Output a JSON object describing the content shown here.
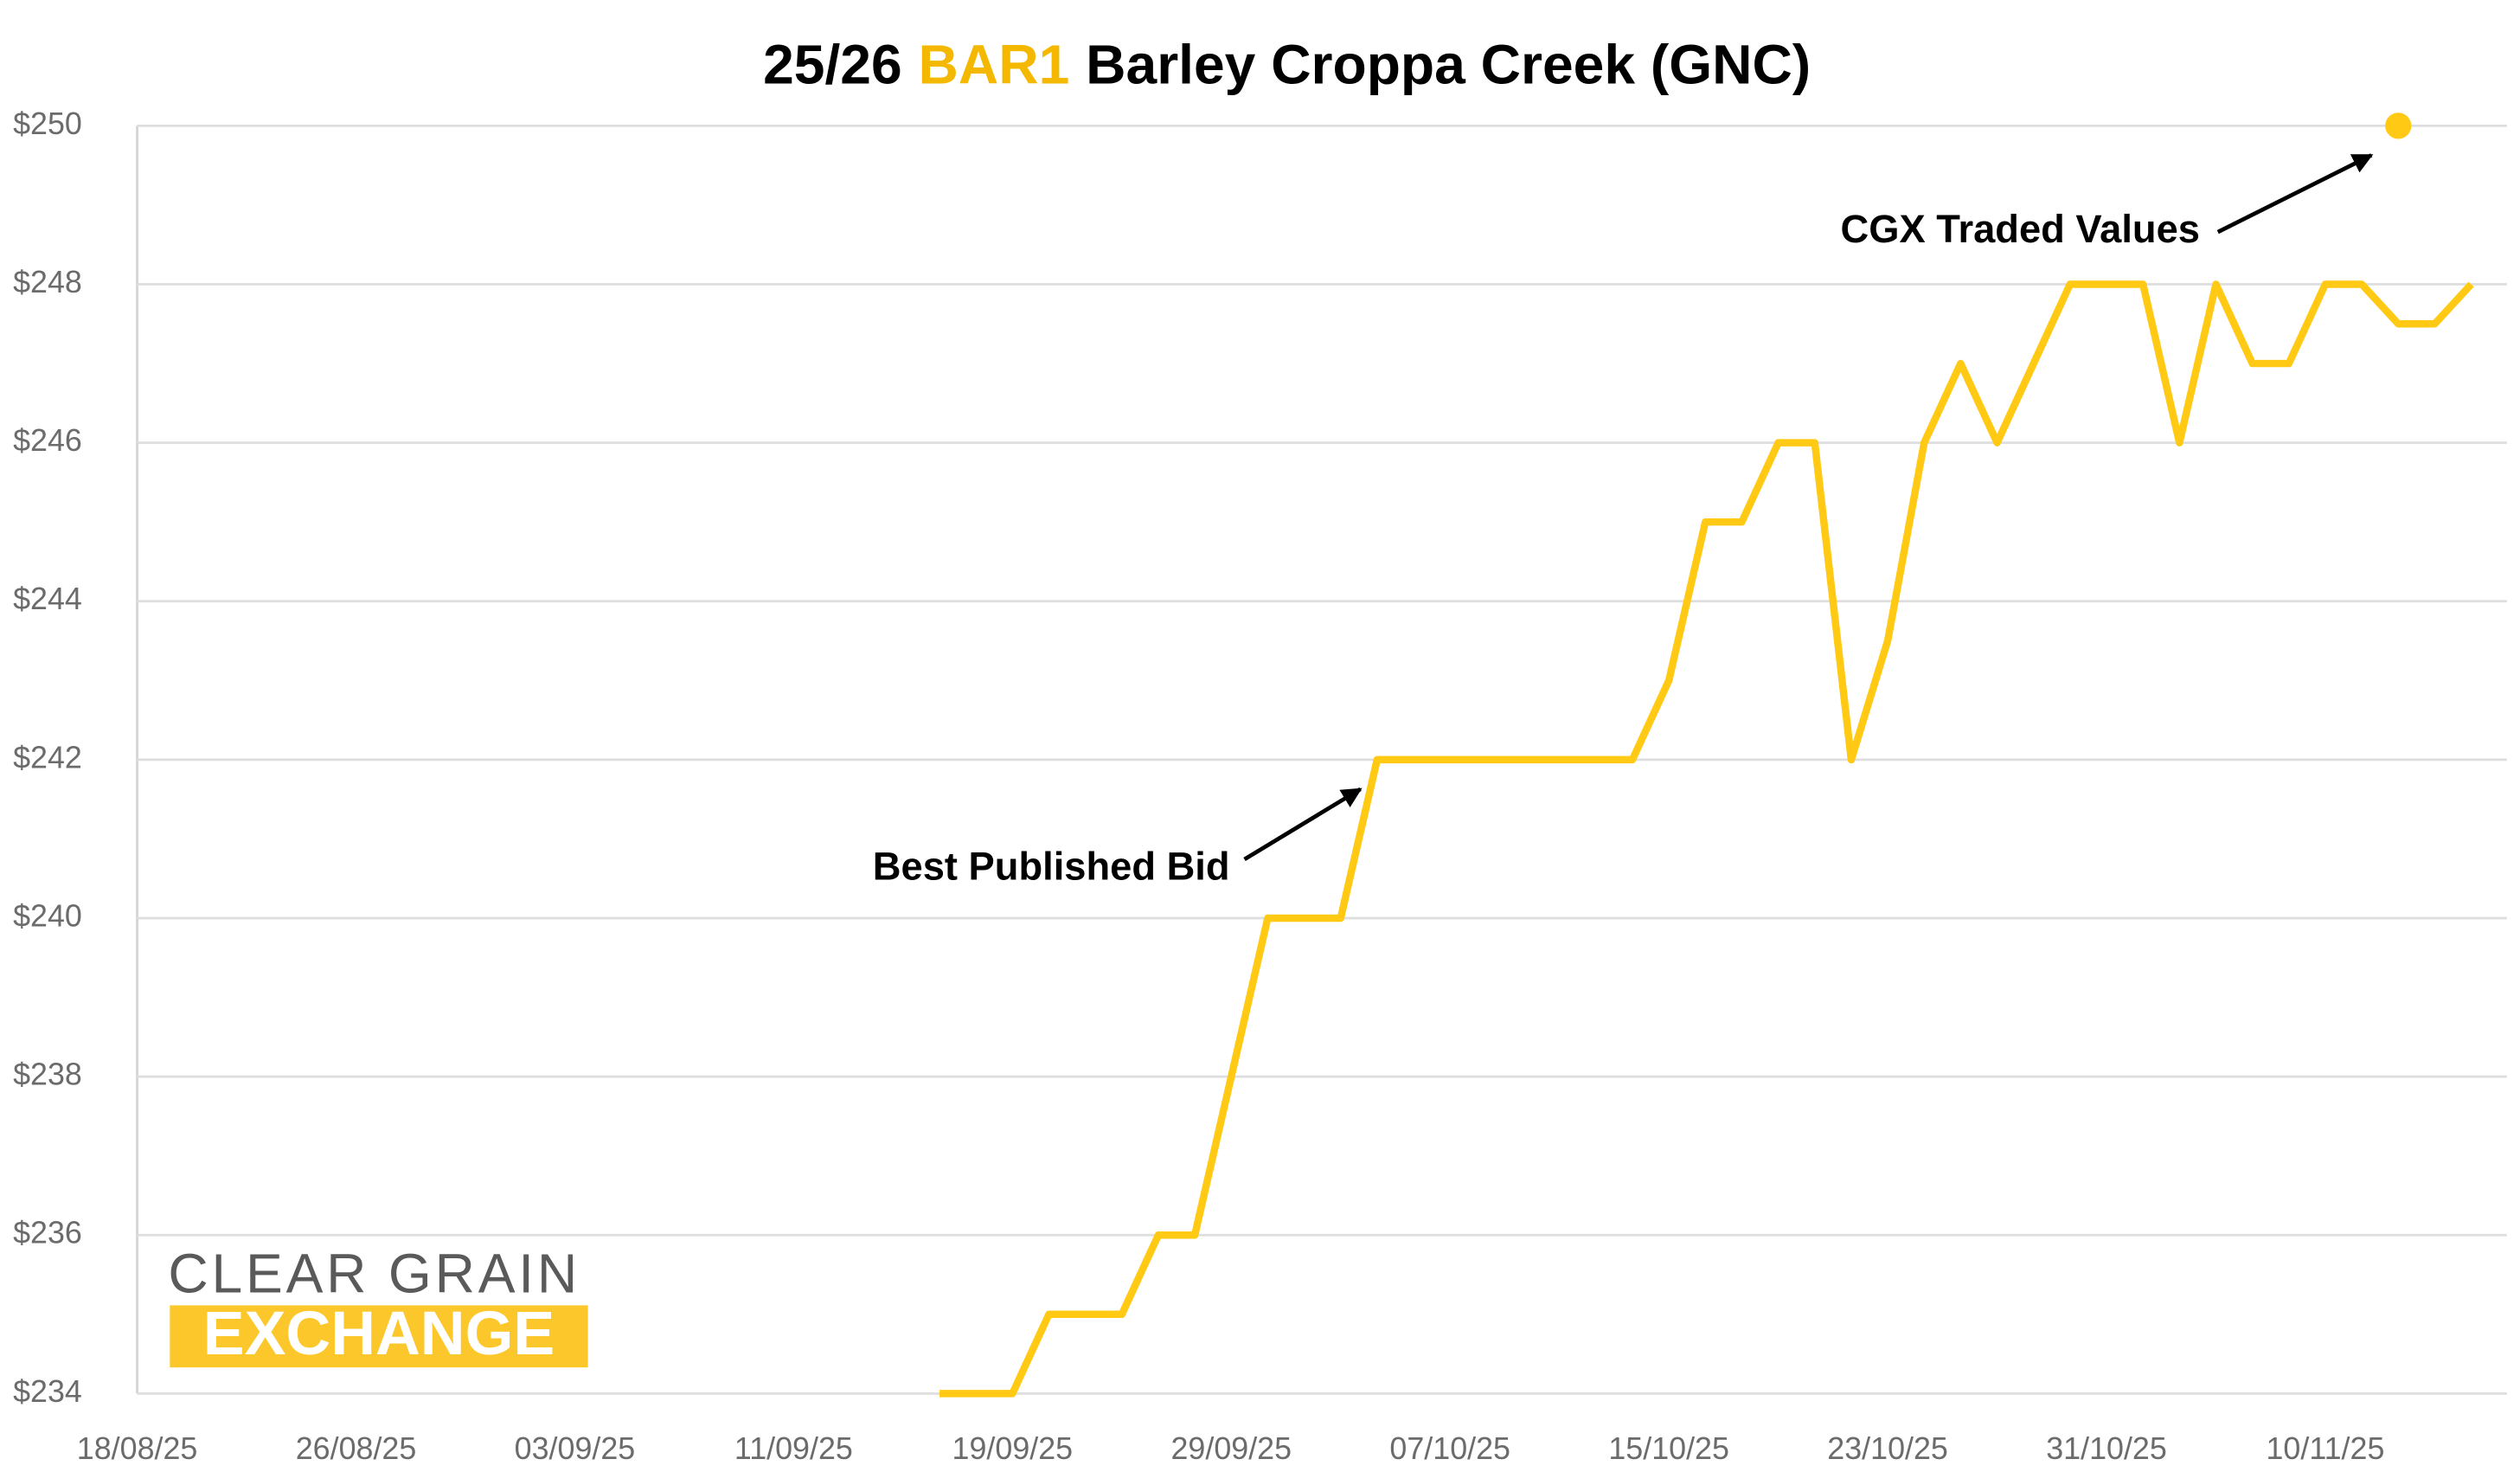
{
  "chart_data": {
    "type": "line",
    "title": {
      "lead": "25/26",
      "highlight": "BAR1",
      "rest": "Barley Croppa Creek (GNC)"
    },
    "highlight_color": "#f5b800",
    "logo": {
      "top": "CLEAR GRAIN",
      "bottom": "EXCHANGE",
      "color": "#fbc72b"
    },
    "categories": [
      "18/08/25",
      null,
      null,
      null,
      null,
      null,
      "26/08/25",
      null,
      null,
      null,
      null,
      null,
      "03/09/25",
      null,
      null,
      null,
      null,
      null,
      "11/09/25",
      null,
      null,
      null,
      null,
      null,
      "19/09/25",
      null,
      null,
      null,
      null,
      null,
      "29/09/25",
      null,
      null,
      null,
      null,
      null,
      "07/10/25",
      null,
      null,
      null,
      null,
      null,
      "15/10/25",
      null,
      null,
      null,
      null,
      null,
      "23/10/25",
      null,
      null,
      null,
      null,
      null,
      "31/10/25",
      null,
      null,
      null,
      null,
      null,
      "10/11/25",
      null,
      null,
      null,
      null
    ],
    "series": [
      {
        "name": "Best Published Bid",
        "color": "#ffc914",
        "mode": "line",
        "values": [
          null,
          null,
          null,
          null,
          null,
          null,
          null,
          null,
          null,
          null,
          null,
          null,
          null,
          null,
          null,
          null,
          null,
          null,
          null,
          null,
          null,
          null,
          234,
          234,
          234,
          235,
          235,
          235,
          236,
          236,
          238,
          240,
          240,
          240,
          242,
          242,
          242,
          242,
          242,
          242,
          242,
          242,
          243,
          245,
          245,
          246,
          246,
          242,
          243.5,
          246,
          247,
          246,
          247,
          248,
          248,
          248,
          246,
          248,
          247,
          247,
          248,
          248,
          247.5,
          247.5,
          248
        ]
      },
      {
        "name": "CGX Traded Values",
        "color": "#ffc914",
        "mode": "marker",
        "values": [
          null,
          null,
          null,
          null,
          null,
          null,
          null,
          null,
          null,
          null,
          null,
          null,
          null,
          null,
          null,
          null,
          null,
          null,
          null,
          null,
          null,
          null,
          null,
          null,
          null,
          null,
          null,
          null,
          null,
          null,
          null,
          null,
          null,
          null,
          null,
          null,
          null,
          null,
          null,
          null,
          null,
          null,
          null,
          null,
          null,
          null,
          null,
          null,
          null,
          null,
          null,
          null,
          null,
          null,
          null,
          null,
          null,
          null,
          null,
          null,
          null,
          null,
          250,
          null,
          null
        ]
      }
    ],
    "ylim": [
      234,
      250
    ],
    "yticks": [
      {
        "value": 234,
        "label": "$234"
      },
      {
        "value": 236,
        "label": "$236"
      },
      {
        "value": 238,
        "label": "$238"
      },
      {
        "value": 240,
        "label": "$240"
      },
      {
        "value": 242,
        "label": "$242"
      },
      {
        "value": 244,
        "label": "$244"
      },
      {
        "value": 246,
        "label": "$246"
      },
      {
        "value": 248,
        "label": "$248"
      },
      {
        "value": 250,
        "label": "$250"
      }
    ],
    "grid": true
  }
}
